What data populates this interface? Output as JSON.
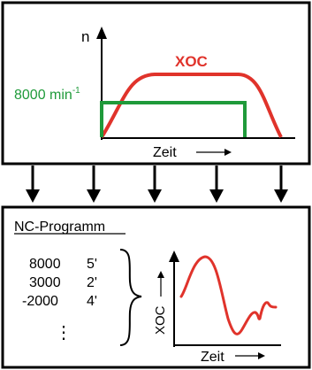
{
  "top_panel": {
    "y_axis_label": "n",
    "speed_label": "8000 min",
    "speed_exponent": "-1",
    "curve_label": "XOC",
    "x_axis_label": "Zeit"
  },
  "bottom_panel": {
    "title": "NC-Programm",
    "program_rows": [
      {
        "speed": "8000",
        "time": "5'"
      },
      {
        "speed": "3000",
        "time": "2'"
      },
      {
        "speed": "-2000",
        "time": "4'"
      }
    ],
    "ellipsis": "⋮",
    "graph_y_label": "XOC",
    "graph_x_label": "Zeit"
  },
  "colors": {
    "red": "#e0332b",
    "green": "#1f9a3a",
    "frame": "#000000"
  }
}
